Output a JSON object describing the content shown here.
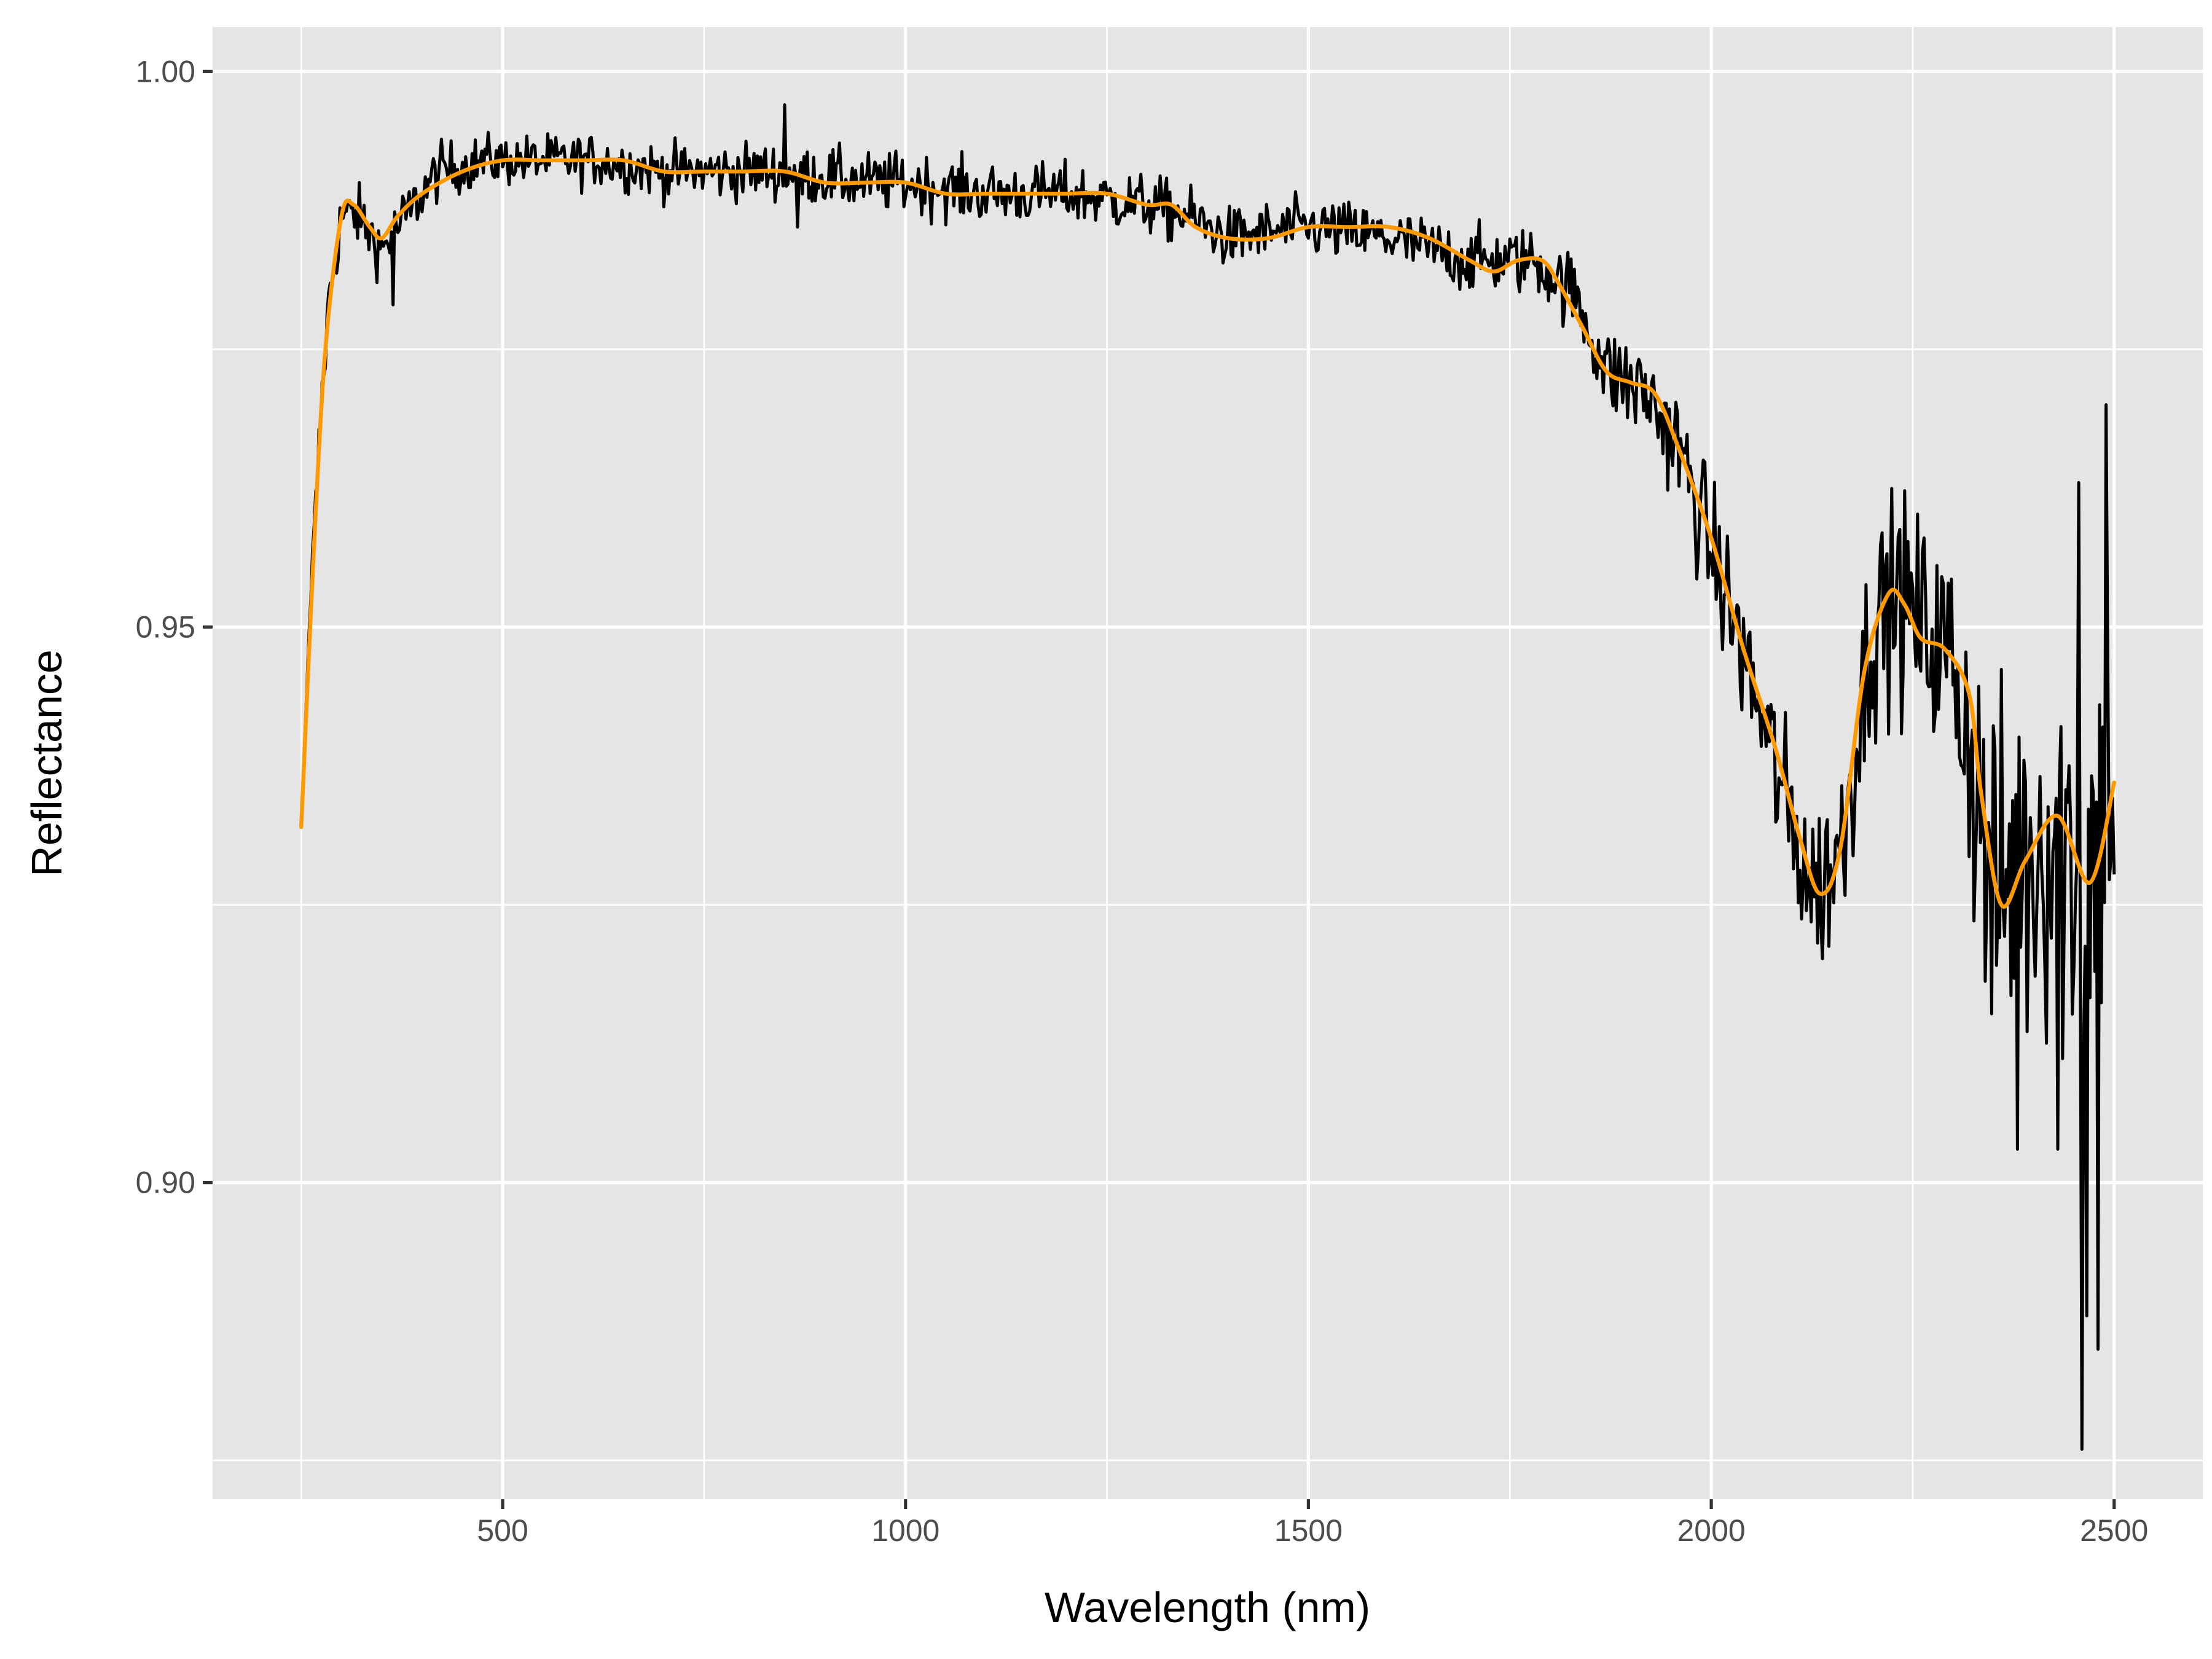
{
  "chart_data": {
    "type": "line",
    "title": "",
    "xlabel": "Wavelength (nm)",
    "ylabel": "Reflectance",
    "xlim": [
      140,
      2610
    ],
    "ylim": [
      0.8715,
      1.004
    ],
    "x_ticks": [
      500,
      1000,
      1500,
      2000,
      2500
    ],
    "x_tick_labels": [
      "500",
      "1000",
      "1500",
      "2000",
      "2500"
    ],
    "y_ticks": [
      0.9,
      0.95,
      1.0
    ],
    "y_tick_labels": [
      "0.90",
      "0.95",
      "1.00"
    ],
    "grid": true,
    "legend": "none",
    "colors": {
      "panel": "#e5e5e5",
      "grid": "#ffffff",
      "raw": "#000000",
      "smooth": "#ff9900"
    },
    "series": [
      {
        "style": "raw",
        "color": "#000000",
        "noisy": true,
        "x_range": [
          250,
          2500
        ],
        "x_step": 2,
        "trend_x": [
          250,
          260,
          275,
          285,
          300,
          320,
          350,
          380,
          420,
          480,
          550,
          620,
          700,
          800,
          850,
          950,
          1000,
          1100,
          1200,
          1300,
          1350,
          1400,
          1500,
          1600,
          1700,
          1780,
          1830,
          1870,
          1920,
          1960,
          2000,
          2050,
          2100,
          2130,
          2160,
          2200,
          2230,
          2260,
          2300,
          2320,
          2350,
          2380,
          2420,
          2460,
          2500
        ],
        "trend_y": [
          0.932,
          0.95,
          0.97,
          0.98,
          0.987,
          0.987,
          0.984,
          0.987,
          0.991,
          0.992,
          0.992,
          0.992,
          0.991,
          0.991,
          0.991,
          0.99,
          0.99,
          0.989,
          0.989,
          0.988,
          0.987,
          0.985,
          0.986,
          0.985,
          0.983,
          0.983,
          0.98,
          0.973,
          0.971,
          0.966,
          0.957,
          0.945,
          0.932,
          0.926,
          0.93,
          0.95,
          0.953,
          0.95,
          0.947,
          0.94,
          0.925,
          0.928,
          0.932,
          0.927,
          0.936
        ],
        "noise_x": [
          250,
          500,
          1000,
          1500,
          1800,
          1900,
          2000,
          2100,
          2200,
          2300,
          2350,
          2400,
          2450,
          2500
        ],
        "noise_amp": [
          0.002,
          0.0015,
          0.0018,
          0.0018,
          0.002,
          0.003,
          0.004,
          0.005,
          0.006,
          0.007,
          0.012,
          0.012,
          0.014,
          0.012
        ],
        "spikes": [
          {
            "x": 850,
            "y": 0.997
          },
          {
            "x": 866,
            "y": 0.986
          },
          {
            "x": 364,
            "y": 0.979
          },
          {
            "x": 2380,
            "y": 0.903
          },
          {
            "x": 2430,
            "y": 0.903
          },
          {
            "x": 2445,
            "y": 0.896
          },
          {
            "x": 2460,
            "y": 0.876
          },
          {
            "x": 2466,
            "y": 0.888
          },
          {
            "x": 2480,
            "y": 0.885
          },
          {
            "x": 2490,
            "y": 0.97
          },
          {
            "x": 2456,
            "y": 0.963
          }
        ]
      },
      {
        "style": "smooth",
        "color": "#ff9900",
        "x": [
          250,
          265,
          280,
          300,
          315,
          335,
          350,
          370,
          400,
          450,
          500,
          550,
          600,
          650,
          700,
          750,
          800,
          850,
          900,
          950,
          1000,
          1050,
          1100,
          1150,
          1200,
          1250,
          1300,
          1330,
          1360,
          1400,
          1450,
          1500,
          1550,
          1600,
          1650,
          1700,
          1730,
          1760,
          1790,
          1810,
          1840,
          1870,
          1900,
          1930,
          1960,
          2000,
          2040,
          2080,
          2110,
          2135,
          2160,
          2190,
          2220,
          2240,
          2260,
          2290,
          2320,
          2335,
          2360,
          2390,
          2430,
          2470,
          2500
        ],
        "y": [
          0.932,
          0.956,
          0.975,
          0.987,
          0.988,
          0.986,
          0.985,
          0.987,
          0.989,
          0.991,
          0.992,
          0.992,
          0.992,
          0.992,
          0.991,
          0.991,
          0.991,
          0.991,
          0.99,
          0.99,
          0.99,
          0.989,
          0.989,
          0.989,
          0.989,
          0.989,
          0.988,
          0.988,
          0.986,
          0.985,
          0.985,
          0.986,
          0.986,
          0.986,
          0.985,
          0.983,
          0.982,
          0.983,
          0.983,
          0.981,
          0.977,
          0.973,
          0.972,
          0.971,
          0.966,
          0.958,
          0.948,
          0.939,
          0.931,
          0.926,
          0.93,
          0.946,
          0.953,
          0.952,
          0.949,
          0.948,
          0.944,
          0.935,
          0.925,
          0.929,
          0.933,
          0.927,
          0.936
        ]
      }
    ]
  }
}
